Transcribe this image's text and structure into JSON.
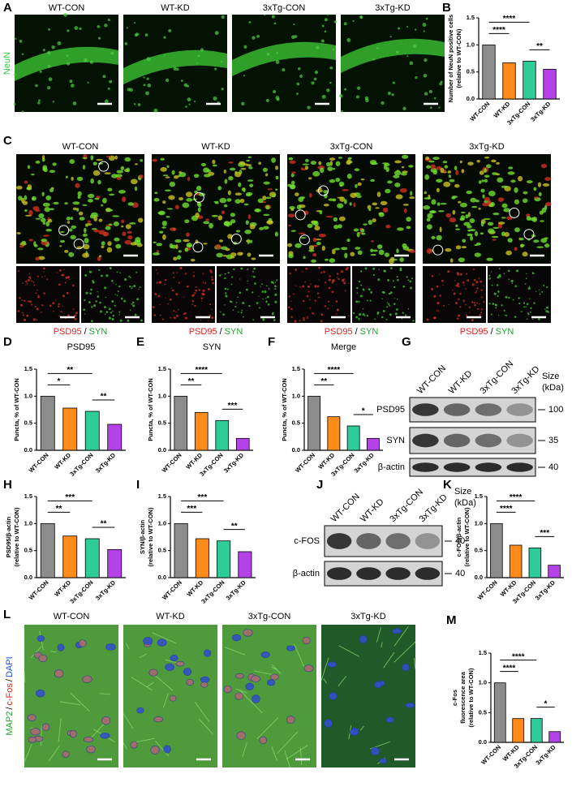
{
  "neun": {
    "panel": "A",
    "stain": "NeuN",
    "groups": [
      "WT-CON",
      "WT-KD",
      "3xTg-CON",
      "3xTg-KD"
    ]
  },
  "synapse": {
    "panel": "C",
    "groups": [
      "WT-CON",
      "WT-KD",
      "3xTg-CON",
      "3xTg-KD"
    ],
    "stain_left": "PSD95",
    "sep": "/",
    "stain_right": "SYN"
  },
  "blot_G": {
    "panel": "G",
    "lanes": [
      "WT-CON",
      "WT-KD",
      "3xTg-CON",
      "3xTg-KD"
    ],
    "rows": [
      "PSD95",
      "SYN",
      "β-actin"
    ],
    "sizes": [
      "100",
      "35",
      "40"
    ],
    "size_title": "Size",
    "size_unit": "(kDa)"
  },
  "blot_J": {
    "panel": "J",
    "lanes": [
      "WT-CON",
      "WT-KD",
      "3xTg-CON",
      "3xTg-KD"
    ],
    "rows": [
      "c-FOS",
      "β-actin"
    ],
    "sizes": [
      "40",
      "40"
    ],
    "size_title": "Size",
    "size_unit": "(kDa)"
  },
  "map2": {
    "panel": "L",
    "groups": [
      "WT-CON",
      "WT-KD",
      "3xTg-CON",
      "3xTg-KD"
    ],
    "stains": [
      "MAP2",
      "c-Fos",
      "DAPI"
    ],
    "sep": "/"
  },
  "chart_data": [
    {
      "type": "bar",
      "panel": "B",
      "ylabel": [
        "Number of NeuN positive cells",
        "(relative to WT-CON)"
      ],
      "categories": [
        "WT-CON",
        "WT-KD",
        "3xTg-CON",
        "3xTg-KD"
      ],
      "values": [
        1.0,
        0.67,
        0.7,
        0.55
      ],
      "colors": [
        "#8c8c8c",
        "#ff8c1a",
        "#2dcc99",
        "#b542e6"
      ],
      "ylim": [
        0,
        1.5
      ],
      "yticks": [
        {
          "value": 0,
          "label": "0.0"
        },
        0.5,
        {
          "value": 1,
          "label": "1.0"
        },
        1.5
      ],
      "significance": [
        {
          "pair": [
            0,
            1
          ],
          "label": "****"
        },
        {
          "pair": [
            0,
            2
          ],
          "label": "****"
        },
        {
          "pair": [
            2,
            3
          ],
          "label": "**"
        }
      ]
    },
    {
      "type": "bar",
      "panel": "D",
      "title": "PSD95",
      "ylabel": [
        "Puncta, % of WT-CON"
      ],
      "categories": [
        "WT-CON",
        "WT-KD",
        "3xTg-CON",
        "3xTg-KD"
      ],
      "values": [
        1.0,
        0.78,
        0.72,
        0.48
      ],
      "colors": [
        "#8c8c8c",
        "#ff8c1a",
        "#2dcc99",
        "#b542e6"
      ],
      "ylim": [
        0,
        1.5
      ],
      "yticks": [
        {
          "value": 0,
          "label": "0.0"
        },
        0.5,
        {
          "value": 1,
          "label": "1.0"
        },
        1.5
      ],
      "significance": [
        {
          "pair": [
            0,
            1
          ],
          "label": "*"
        },
        {
          "pair": [
            0,
            2
          ],
          "label": "**"
        },
        {
          "pair": [
            2,
            3
          ],
          "label": "**"
        }
      ]
    },
    {
      "type": "bar",
      "panel": "E",
      "title": "SYN",
      "ylabel": [
        "Puncta, % of WT-CON"
      ],
      "categories": [
        "WT-CON",
        "WT-KD",
        "3xTg-CON",
        "3xTg-KD"
      ],
      "values": [
        1.0,
        0.7,
        0.55,
        0.22
      ],
      "colors": [
        "#8c8c8c",
        "#ff8c1a",
        "#2dcc99",
        "#b542e6"
      ],
      "ylim": [
        0,
        1.5
      ],
      "yticks": [
        {
          "value": 0,
          "label": "0.0"
        },
        0.5,
        {
          "value": 1,
          "label": "1.0"
        },
        1.5
      ],
      "significance": [
        {
          "pair": [
            0,
            1
          ],
          "label": "**"
        },
        {
          "pair": [
            0,
            2
          ],
          "label": "****"
        },
        {
          "pair": [
            2,
            3
          ],
          "label": "***"
        }
      ]
    },
    {
      "type": "bar",
      "panel": "F",
      "title": "Merge",
      "ylabel": [
        "Puncta, % of WT-CON"
      ],
      "categories": [
        "WT-CON",
        "WT-KD",
        "3xTg-CON",
        "3xTg-KD"
      ],
      "values": [
        1.0,
        0.62,
        0.45,
        0.22
      ],
      "colors": [
        "#8c8c8c",
        "#ff8c1a",
        "#2dcc99",
        "#b542e6"
      ],
      "ylim": [
        0,
        1.5
      ],
      "yticks": [
        {
          "value": 0,
          "label": "0.0"
        },
        0.5,
        {
          "value": 1,
          "label": "1.0"
        },
        1.5
      ],
      "significance": [
        {
          "pair": [
            0,
            1
          ],
          "label": "**"
        },
        {
          "pair": [
            0,
            2
          ],
          "label": "****"
        },
        {
          "pair": [
            2,
            3
          ],
          "label": "*"
        }
      ]
    },
    {
      "type": "bar",
      "panel": "H",
      "ylabel": [
        "PSD95/β-actin",
        "(relative to WT-CON)"
      ],
      "categories": [
        "WT-CON",
        "WT-KD",
        "3xTg-CON",
        "3xTg-KD"
      ],
      "values": [
        1.0,
        0.77,
        0.72,
        0.52
      ],
      "colors": [
        "#8c8c8c",
        "#ff8c1a",
        "#2dcc99",
        "#b542e6"
      ],
      "ylim": [
        0,
        1.5
      ],
      "yticks": [
        {
          "value": 0,
          "label": "0.0"
        },
        0.5,
        {
          "value": 1,
          "label": "1.0"
        },
        1.5
      ],
      "significance": [
        {
          "pair": [
            0,
            1
          ],
          "label": "**"
        },
        {
          "pair": [
            0,
            2
          ],
          "label": "***"
        },
        {
          "pair": [
            2,
            3
          ],
          "label": "**"
        }
      ]
    },
    {
      "type": "bar",
      "panel": "I",
      "ylabel": [
        "SYN/β-actin",
        "(relative to WT-CON)"
      ],
      "categories": [
        "WT-CON",
        "WT-KD",
        "3xTg-CON",
        "3xTg-KD"
      ],
      "values": [
        1.0,
        0.72,
        0.68,
        0.48
      ],
      "colors": [
        "#8c8c8c",
        "#ff8c1a",
        "#2dcc99",
        "#b542e6"
      ],
      "ylim": [
        0,
        1.5
      ],
      "yticks": [
        {
          "value": 0,
          "label": "0.0"
        },
        0.5,
        {
          "value": 1,
          "label": "1.0"
        },
        1.5
      ],
      "significance": [
        {
          "pair": [
            0,
            1
          ],
          "label": "***"
        },
        {
          "pair": [
            0,
            2
          ],
          "label": "***"
        },
        {
          "pair": [
            2,
            3
          ],
          "label": "**"
        }
      ]
    },
    {
      "type": "bar",
      "panel": "K",
      "ylabel": [
        "c-FOS/β-actin",
        "(relative to WT-CON)"
      ],
      "categories": [
        "WT-CON",
        "WT-KD",
        "3xTg-CON",
        "3xTg-KD"
      ],
      "values": [
        1.0,
        0.6,
        0.55,
        0.23
      ],
      "colors": [
        "#8c8c8c",
        "#ff8c1a",
        "#2dcc99",
        "#b542e6"
      ],
      "ylim": [
        0,
        1.5
      ],
      "yticks": [
        {
          "value": 0,
          "label": "0.0"
        },
        0.5,
        {
          "value": 1,
          "label": "1.0"
        },
        1.5
      ],
      "significance": [
        {
          "pair": [
            0,
            1
          ],
          "label": "****"
        },
        {
          "pair": [
            0,
            2
          ],
          "label": "****"
        },
        {
          "pair": [
            2,
            3
          ],
          "label": "***"
        }
      ]
    },
    {
      "type": "bar",
      "panel": "M",
      "ylabel": [
        "c-Fos",
        "fluorescence area",
        "(relative to WT-CON)"
      ],
      "categories": [
        "WT-CON",
        "WT-KD",
        "3xTg-CON",
        "3xTg-KD"
      ],
      "values": [
        1.0,
        0.4,
        0.4,
        0.18
      ],
      "colors": [
        "#8c8c8c",
        "#ff8c1a",
        "#2dcc99",
        "#b542e6"
      ],
      "ylim": [
        0,
        1.5
      ],
      "yticks": [
        {
          "value": 0,
          "label": "0.0"
        },
        0.5,
        {
          "value": 1,
          "label": "1.0"
        },
        1.5
      ],
      "significance": [
        {
          "pair": [
            0,
            1
          ],
          "label": "****"
        },
        {
          "pair": [
            0,
            2
          ],
          "label": "****"
        },
        {
          "pair": [
            2,
            3
          ],
          "label": "*"
        }
      ]
    }
  ]
}
